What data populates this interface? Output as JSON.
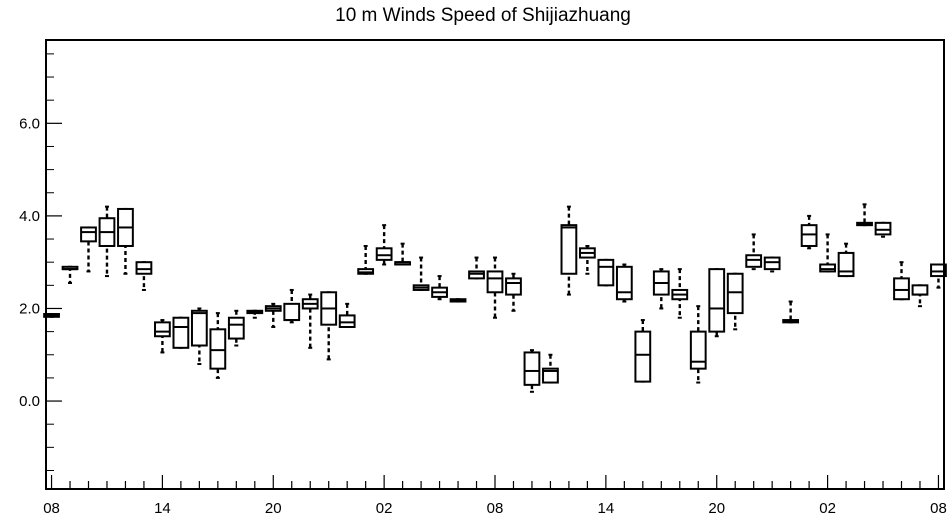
{
  "chart_data": {
    "type": "box",
    "title": "10 m Winds Speed of Shijiazhuang",
    "xlabel": "",
    "ylabel": "",
    "ylim": [
      -1.9,
      7.8
    ],
    "y_ticks": [
      {
        "value": 0.0,
        "label": "0.0"
      },
      {
        "value": 2.0,
        "label": "2.0"
      },
      {
        "value": 4.0,
        "label": "4.0"
      },
      {
        "value": 6.0,
        "label": "6.0"
      }
    ],
    "y_minor_ticks": [
      -1.5,
      -1.0,
      -0.5,
      0.5,
      1.0,
      1.5,
      2.5,
      3.0,
      3.5,
      4.5,
      5.0,
      5.5,
      6.5,
      7.0,
      7.5
    ],
    "x_tick_labels": [
      "08",
      "14",
      "20",
      "02",
      "08",
      "14",
      "20",
      "02",
      "08"
    ],
    "x_tick_label_positions": [
      0,
      6,
      12,
      18,
      24,
      30,
      36,
      42,
      48
    ],
    "xlim": [
      -0.3,
      48.3
    ],
    "boxes": [
      {
        "x": 0,
        "min": 1.82,
        "q1": 1.82,
        "median": 1.85,
        "q3": 1.88,
        "max": 1.88
      },
      {
        "x": 1,
        "min": 2.55,
        "q1": 2.85,
        "median": 2.85,
        "q3": 2.9,
        "max": 2.9
      },
      {
        "x": 2,
        "min": 2.8,
        "q1": 3.45,
        "median": 3.65,
        "q3": 3.75,
        "max": 3.75
      },
      {
        "x": 3,
        "min": 2.7,
        "q1": 3.35,
        "median": 3.65,
        "q3": 3.95,
        "max": 4.2
      },
      {
        "x": 4,
        "min": 2.75,
        "q1": 3.35,
        "median": 3.75,
        "q3": 4.15,
        "max": 4.15
      },
      {
        "x": 5,
        "min": 2.4,
        "q1": 2.75,
        "median": 2.85,
        "q3": 3.0,
        "max": 3.0
      },
      {
        "x": 6,
        "min": 1.05,
        "q1": 1.4,
        "median": 1.5,
        "q3": 1.7,
        "max": 1.75
      },
      {
        "x": 7,
        "min": 1.15,
        "q1": 1.15,
        "median": 1.6,
        "q3": 1.8,
        "max": 1.8
      },
      {
        "x": 8,
        "min": 0.8,
        "q1": 1.2,
        "median": 1.9,
        "q3": 1.95,
        "max": 2.0
      },
      {
        "x": 9,
        "min": 0.5,
        "q1": 0.7,
        "median": 1.1,
        "q3": 1.55,
        "max": 1.9
      },
      {
        "x": 10,
        "min": 1.2,
        "q1": 1.35,
        "median": 1.65,
        "q3": 1.8,
        "max": 1.95
      },
      {
        "x": 11,
        "min": 1.8,
        "q1": 1.9,
        "median": 1.92,
        "q3": 1.95,
        "max": 1.95
      },
      {
        "x": 12,
        "min": 1.6,
        "q1": 1.95,
        "median": 2.0,
        "q3": 2.05,
        "max": 2.1
      },
      {
        "x": 13,
        "min": 1.7,
        "q1": 1.75,
        "median": 1.75,
        "q3": 2.1,
        "max": 2.4
      },
      {
        "x": 14,
        "min": 1.15,
        "q1": 2.0,
        "median": 2.1,
        "q3": 2.2,
        "max": 2.3
      },
      {
        "x": 15,
        "min": 0.9,
        "q1": 1.65,
        "median": 2.0,
        "q3": 2.35,
        "max": 2.35
      },
      {
        "x": 16,
        "min": 1.6,
        "q1": 1.6,
        "median": 1.7,
        "q3": 1.85,
        "max": 2.1
      },
      {
        "x": 17,
        "min": 2.75,
        "q1": 2.75,
        "median": 2.78,
        "q3": 2.85,
        "max": 3.35
      },
      {
        "x": 18,
        "min": 2.95,
        "q1": 3.05,
        "median": 3.15,
        "q3": 3.3,
        "max": 3.8
      },
      {
        "x": 19,
        "min": 2.95,
        "q1": 2.95,
        "median": 3.0,
        "q3": 3.0,
        "max": 3.4
      },
      {
        "x": 20,
        "min": 2.4,
        "q1": 2.4,
        "median": 2.45,
        "q3": 2.5,
        "max": 3.1
      },
      {
        "x": 21,
        "min": 2.2,
        "q1": 2.25,
        "median": 2.35,
        "q3": 2.45,
        "max": 2.7
      },
      {
        "x": 22,
        "min": 2.15,
        "q1": 2.15,
        "median": 2.18,
        "q3": 2.2,
        "max": 2.2
      },
      {
        "x": 23,
        "min": 2.65,
        "q1": 2.65,
        "median": 2.75,
        "q3": 2.8,
        "max": 3.1
      },
      {
        "x": 24,
        "min": 1.8,
        "q1": 2.35,
        "median": 2.65,
        "q3": 2.8,
        "max": 3.1
      },
      {
        "x": 25,
        "min": 1.95,
        "q1": 2.3,
        "median": 2.55,
        "q3": 2.65,
        "max": 2.75
      },
      {
        "x": 26,
        "min": 0.2,
        "q1": 0.35,
        "median": 0.65,
        "q3": 1.05,
        "max": 1.1
      },
      {
        "x": 27,
        "min": 0.4,
        "q1": 0.4,
        "median": 0.65,
        "q3": 0.7,
        "max": 1.0
      },
      {
        "x": 28,
        "min": 2.3,
        "q1": 2.75,
        "median": 3.75,
        "q3": 3.8,
        "max": 4.2
      },
      {
        "x": 29,
        "min": 2.75,
        "q1": 3.1,
        "median": 3.2,
        "q3": 3.3,
        "max": 3.35
      },
      {
        "x": 30,
        "min": 2.5,
        "q1": 2.5,
        "median": 2.9,
        "q3": 3.05,
        "max": 3.05
      },
      {
        "x": 31,
        "min": 2.15,
        "q1": 2.2,
        "median": 2.35,
        "q3": 2.9,
        "max": 2.95
      },
      {
        "x": 32,
        "min": 0.42,
        "q1": 0.42,
        "median": 1.0,
        "q3": 1.5,
        "max": 1.75
      },
      {
        "x": 33,
        "min": 2.0,
        "q1": 2.3,
        "median": 2.55,
        "q3": 2.8,
        "max": 2.85
      },
      {
        "x": 34,
        "min": 1.8,
        "q1": 2.2,
        "median": 2.3,
        "q3": 2.4,
        "max": 2.85
      },
      {
        "x": 35,
        "min": 0.4,
        "q1": 0.7,
        "median": 0.85,
        "q3": 1.5,
        "max": 2.05
      },
      {
        "x": 36,
        "min": 1.4,
        "q1": 1.5,
        "median": 2.0,
        "q3": 2.85,
        "max": 2.85
      },
      {
        "x": 37,
        "min": 1.55,
        "q1": 1.9,
        "median": 2.35,
        "q3": 2.75,
        "max": 2.75
      },
      {
        "x": 38,
        "min": 2.85,
        "q1": 2.9,
        "median": 3.05,
        "q3": 3.15,
        "max": 3.6
      },
      {
        "x": 39,
        "min": 2.8,
        "q1": 2.85,
        "median": 3.0,
        "q3": 3.1,
        "max": 3.1
      },
      {
        "x": 40,
        "min": 1.7,
        "q1": 1.7,
        "median": 1.72,
        "q3": 1.75,
        "max": 2.15
      },
      {
        "x": 41,
        "min": 3.3,
        "q1": 3.35,
        "median": 3.6,
        "q3": 3.8,
        "max": 4.0
      },
      {
        "x": 42,
        "min": 2.8,
        "q1": 2.8,
        "median": 2.85,
        "q3": 2.95,
        "max": 3.6
      },
      {
        "x": 43,
        "min": 2.7,
        "q1": 2.7,
        "median": 2.8,
        "q3": 3.2,
        "max": 3.4
      },
      {
        "x": 44,
        "min": 3.8,
        "q1": 3.8,
        "median": 3.82,
        "q3": 3.85,
        "max": 4.25
      },
      {
        "x": 45,
        "min": 3.55,
        "q1": 3.6,
        "median": 3.7,
        "q3": 3.85,
        "max": 3.85
      },
      {
        "x": 46,
        "min": 2.2,
        "q1": 2.2,
        "median": 2.4,
        "q3": 2.65,
        "max": 3.0
      },
      {
        "x": 47,
        "min": 2.05,
        "q1": 2.3,
        "median": 2.3,
        "q3": 2.5,
        "max": 2.5
      },
      {
        "x": 48,
        "min": 2.45,
        "q1": 2.7,
        "median": 2.8,
        "q3": 2.95,
        "max": 2.95
      }
    ]
  }
}
